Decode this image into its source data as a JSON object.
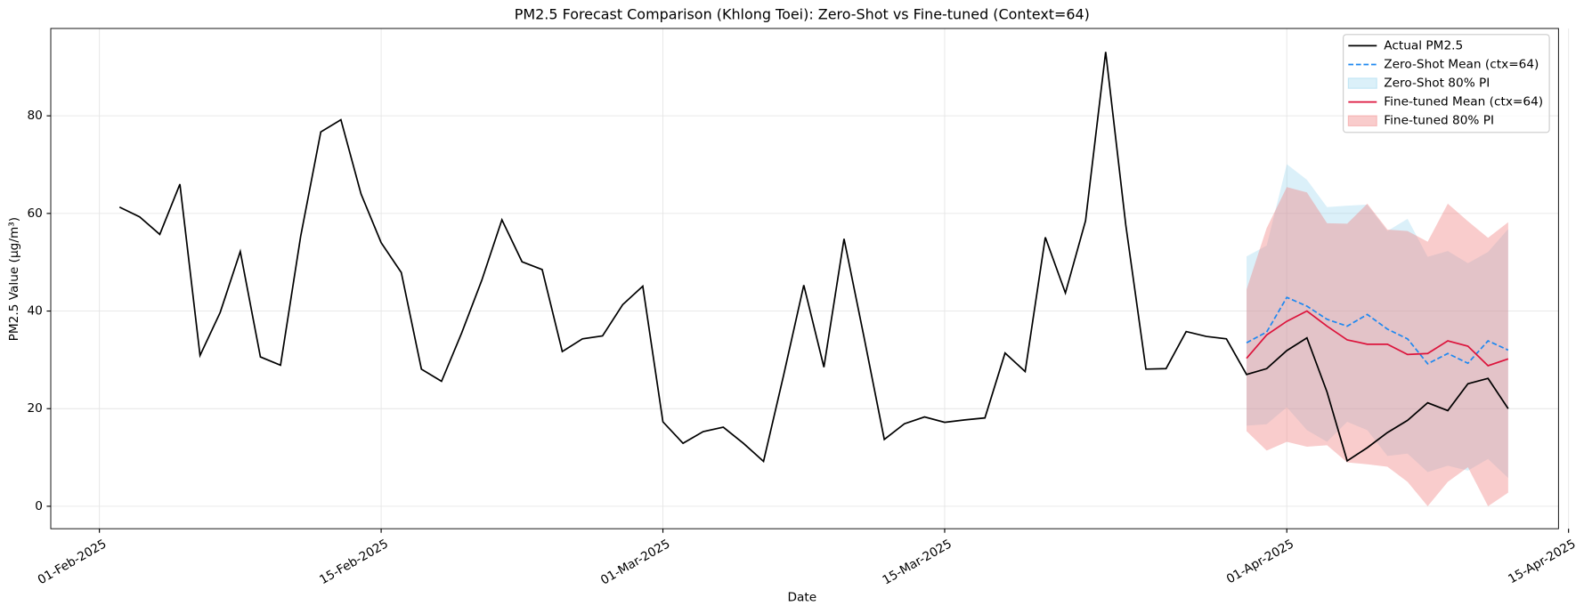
{
  "chart_data": {
    "type": "line",
    "title": "PM2.5 Forecast Comparison (Khlong Toei): Zero-Shot vs Fine-tuned (Context=64)",
    "x_label": "Date",
    "y_label": "PM2.5 Value (µg/m³)",
    "xlim": [
      "2025-01-29T14:00",
      "2025-04-14T12:00"
    ],
    "xticks": [
      {
        "value": "2025-02-01",
        "label": "01-Feb-2025"
      },
      {
        "value": "2025-02-15",
        "label": "15-Feb-2025"
      },
      {
        "value": "2025-03-01",
        "label": "01-Mar-2025"
      },
      {
        "value": "2025-03-15",
        "label": "15-Mar-2025"
      },
      {
        "value": "2025-04-01",
        "label": "01-Apr-2025"
      },
      {
        "value": "2025-04-15",
        "label": "15-Apr-2025"
      }
    ],
    "ylim": [
      -4.6,
      97.9
    ],
    "yticks": [
      0,
      20,
      40,
      60,
      80
    ],
    "grid": true,
    "legend": "upper right",
    "series": [
      {
        "name": "Actual PM2.5",
        "kind": "line",
        "color": "#000000",
        "dash": false,
        "x": [
          "2025-02-02",
          "2025-02-03",
          "2025-02-04",
          "2025-02-05",
          "2025-02-06",
          "2025-02-07",
          "2025-02-08",
          "2025-02-09",
          "2025-02-10",
          "2025-02-11",
          "2025-02-12",
          "2025-02-13",
          "2025-02-14",
          "2025-02-15",
          "2025-02-16",
          "2025-02-17",
          "2025-02-18",
          "2025-02-19",
          "2025-02-20",
          "2025-02-21",
          "2025-02-22",
          "2025-02-23",
          "2025-02-24",
          "2025-02-25",
          "2025-02-26",
          "2025-02-27",
          "2025-02-28",
          "2025-03-01",
          "2025-03-02",
          "2025-03-03",
          "2025-03-04",
          "2025-03-05",
          "2025-03-06",
          "2025-03-07",
          "2025-03-08",
          "2025-03-09",
          "2025-03-10",
          "2025-03-11",
          "2025-03-12",
          "2025-03-13",
          "2025-03-14",
          "2025-03-15",
          "2025-03-16",
          "2025-03-17",
          "2025-03-18",
          "2025-03-19",
          "2025-03-20",
          "2025-03-21",
          "2025-03-22",
          "2025-03-23",
          "2025-03-24",
          "2025-03-25",
          "2025-03-26",
          "2025-03-27",
          "2025-03-28",
          "2025-03-29",
          "2025-03-30",
          "2025-03-31",
          "2025-04-01",
          "2025-04-02",
          "2025-04-03",
          "2025-04-04",
          "2025-04-05",
          "2025-04-06",
          "2025-04-07",
          "2025-04-08",
          "2025-04-09",
          "2025-04-10",
          "2025-04-11",
          "2025-04-12"
        ],
        "values": [
          61.3,
          59.3,
          55.7,
          66,
          30.9,
          39.7,
          52.2,
          30.6,
          28.9,
          55.3,
          76.7,
          79.2,
          64,
          54,
          47.9,
          28.1,
          25.6,
          35.5,
          46.3,
          58.7,
          50.1,
          48.5,
          31.7,
          34.3,
          34.9,
          41.3,
          45.1,
          17.3,
          12.9,
          15.3,
          16.2,
          12.9,
          9.2,
          26.9,
          45.3,
          28.5,
          54.8,
          34.5,
          13.7,
          16.9,
          18.3,
          17.2,
          17.7,
          18.1,
          31.4,
          27.6,
          55.1,
          43.7,
          58.5,
          93.1,
          57.6,
          28.1,
          28.2,
          35.8,
          34.8,
          34.3,
          27,
          28.2,
          31.9,
          34.5,
          23.4,
          9.3,
          12,
          15.1,
          17.6,
          21.2,
          19.6,
          25.1,
          26.2,
          20
        ]
      },
      {
        "name": "Zero-Shot Mean (ctx=64)",
        "kind": "line",
        "color": "#1e88f0",
        "dash": true,
        "x": [
          "2025-03-30",
          "2025-03-31",
          "2025-04-01",
          "2025-04-02",
          "2025-04-03",
          "2025-04-04",
          "2025-04-05",
          "2025-04-06",
          "2025-04-07",
          "2025-04-08",
          "2025-04-09",
          "2025-04-10",
          "2025-04-11",
          "2025-04-12"
        ],
        "values": [
          33.5,
          35.7,
          42.8,
          41,
          38.3,
          36.9,
          39.3,
          36.3,
          34.3,
          29.2,
          31.3,
          29.3,
          33.9,
          32
        ]
      },
      {
        "name": "Zero-Shot 80% PI",
        "kind": "band",
        "color": "#87ceeb",
        "x": [
          "2025-03-30",
          "2025-03-31",
          "2025-04-01",
          "2025-04-02",
          "2025-04-03",
          "2025-04-04",
          "2025-04-05",
          "2025-04-06",
          "2025-04-07",
          "2025-04-08",
          "2025-04-09",
          "2025-04-10",
          "2025-04-11",
          "2025-04-12"
        ],
        "lower": [
          16.5,
          16.8,
          20.3,
          15.6,
          13.2,
          17.3,
          15.6,
          10.3,
          10.8,
          7,
          8.3,
          7.3,
          9.7,
          5.8
        ],
        "upper": [
          51.2,
          53.4,
          70.1,
          66.9,
          61.3,
          61.6,
          61.8,
          56.4,
          58.9,
          51.1,
          52.3,
          49.8,
          52.1,
          56.8
        ]
      },
      {
        "name": "Fine-tuned Mean (ctx=64)",
        "kind": "line",
        "color": "#dc143c",
        "dash": false,
        "x": [
          "2025-03-30",
          "2025-03-31",
          "2025-04-01",
          "2025-04-02",
          "2025-04-03",
          "2025-04-04",
          "2025-04-05",
          "2025-04-06",
          "2025-04-07",
          "2025-04-08",
          "2025-04-09",
          "2025-04-10",
          "2025-04-11",
          "2025-04-12"
        ],
        "values": [
          30.3,
          35.1,
          37.9,
          40,
          36.9,
          34.1,
          33.2,
          33.2,
          31.1,
          31.3,
          33.9,
          32.8,
          28.8,
          30.2
        ]
      },
      {
        "name": "Fine-tuned 80% PI",
        "kind": "band",
        "color": "#f08080",
        "x": [
          "2025-03-30",
          "2025-03-31",
          "2025-04-01",
          "2025-04-02",
          "2025-04-03",
          "2025-04-04",
          "2025-04-05",
          "2025-04-06",
          "2025-04-07",
          "2025-04-08",
          "2025-04-09",
          "2025-04-10",
          "2025-04-11",
          "2025-04-12"
        ],
        "lower": [
          15.4,
          11.4,
          13.2,
          12.2,
          12.5,
          9,
          8.6,
          8.1,
          5,
          0,
          5,
          8,
          0,
          2.8
        ],
        "upper": [
          44.4,
          57,
          65.4,
          64.3,
          58,
          57.9,
          62,
          56.7,
          56.4,
          54.2,
          62,
          58.4,
          55,
          58.2
        ]
      }
    ]
  }
}
